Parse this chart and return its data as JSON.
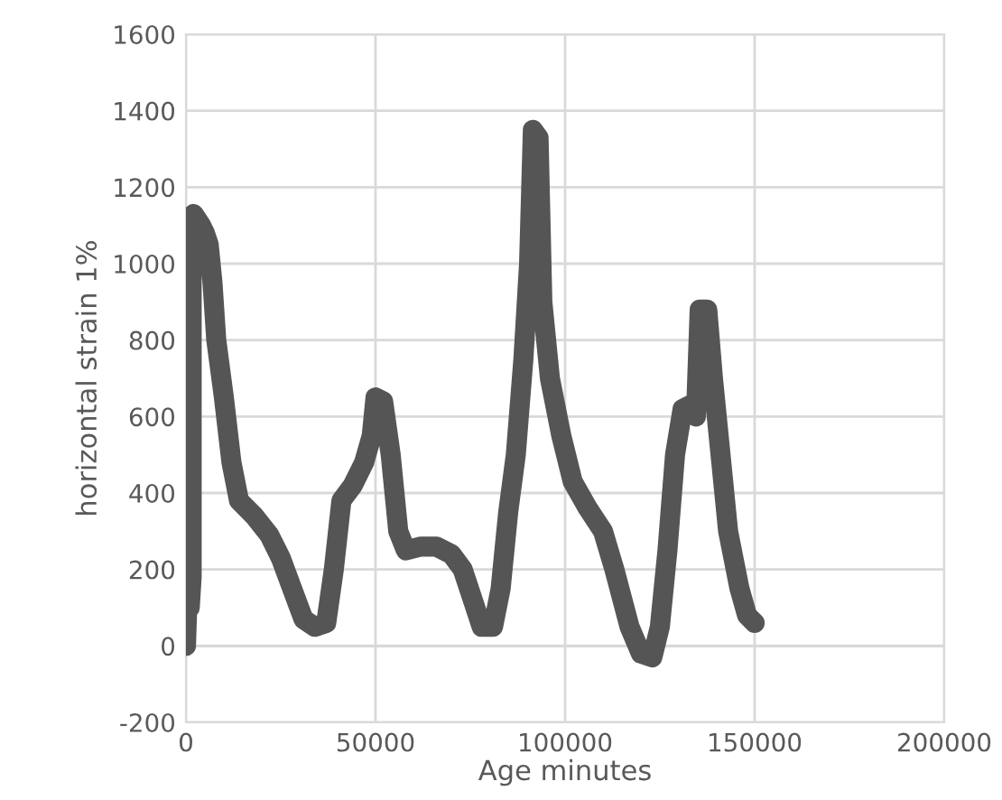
{
  "chart_data": {
    "type": "line",
    "xlabel": "Age minutes",
    "ylabel": "horizontal strain 1%",
    "xlim": [
      0,
      200000
    ],
    "xticks": [
      0,
      50000,
      100000,
      150000,
      200000
    ],
    "ylim": [
      -200,
      1600
    ],
    "yticks": [
      -200,
      0,
      200,
      400,
      600,
      800,
      1000,
      1200,
      1400,
      1600
    ],
    "grid": true,
    "line_style": "solid",
    "series": [
      {
        "color": "#555555",
        "x": [
          0,
          500,
          1000,
          1500,
          1500,
          2000,
          4000,
          5000,
          6000,
          7000,
          8000,
          10000,
          12000,
          14000,
          18000,
          22000,
          25000,
          28000,
          31000,
          34000,
          37000,
          39000,
          41000,
          44000,
          47000,
          49000,
          50000,
          52000,
          54000,
          56000,
          58000,
          62000,
          66000,
          70000,
          73000,
          76000,
          78000,
          81000,
          83000,
          85000,
          87000,
          89000,
          90500,
          91500,
          93000,
          94000,
          96000,
          99000,
          102000,
          106000,
          110000,
          113000,
          117000,
          120000,
          123000,
          125000,
          127000,
          129000,
          131000,
          133000,
          134500,
          135500,
          137500,
          139000,
          141000,
          143000,
          146000,
          148000,
          150000
        ],
        "values": [
          0,
          150,
          100,
          180,
          1050,
          1130,
          1100,
          1080,
          1050,
          950,
          800,
          650,
          480,
          380,
          340,
          290,
          230,
          150,
          70,
          50,
          60,
          200,
          380,
          420,
          480,
          550,
          650,
          640,
          500,
          300,
          250,
          260,
          260,
          240,
          200,
          110,
          50,
          50,
          150,
          350,
          500,
          750,
          1000,
          1350,
          1330,
          900,
          700,
          550,
          430,
          360,
          300,
          200,
          50,
          -20,
          -30,
          50,
          250,
          500,
          620,
          630,
          600,
          880,
          880,
          700,
          500,
          300,
          150,
          80,
          60
        ]
      }
    ]
  }
}
